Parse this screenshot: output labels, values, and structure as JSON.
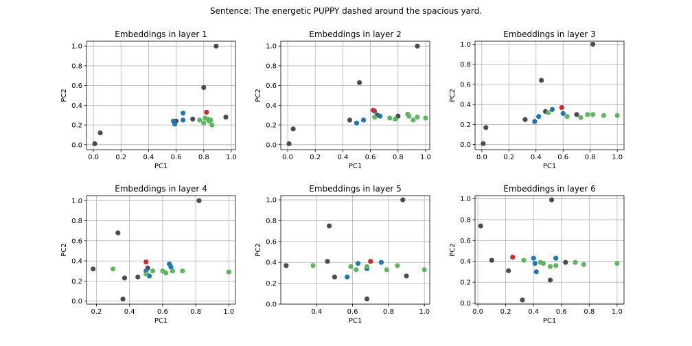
{
  "suptitle": "Sentence: The energetic PUPPY dashed around the spacious yard.",
  "colors": {
    "background": "#ffffff",
    "grid": "#b0b0b0",
    "axes": "#000000"
  },
  "chart_data": [
    {
      "type": "scatter",
      "title": "Embeddings in layer 1",
      "xlabel": "PC1",
      "ylabel": "PC2",
      "xlim": [
        -0.05,
        1.03
      ],
      "ylim": [
        -0.05,
        1.05
      ],
      "xticks": [
        0.0,
        0.2,
        0.4,
        0.6,
        0.8,
        1.0
      ],
      "xtick_labels": [
        "0.0",
        "0.2",
        "0.4",
        "0.6",
        "0.8",
        "1.0"
      ],
      "yticks": [
        0.0,
        0.2,
        0.4,
        0.6,
        0.8,
        1.0
      ],
      "ytick_labels": [
        "0.0",
        "0.2",
        "0.4",
        "0.6",
        "0.8",
        "1.0"
      ],
      "grid": true,
      "series": [
        {
          "color": "#4c4c4c",
          "points": [
            [
              0.01,
              0.01
            ],
            [
              0.05,
              0.12
            ],
            [
              0.6,
              0.24
            ],
            [
              0.72,
              0.26
            ],
            [
              0.8,
              0.58
            ],
            [
              0.89,
              1.0
            ],
            [
              0.96,
              0.28
            ]
          ]
        },
        {
          "color": "#1f77b4",
          "points": [
            [
              0.58,
              0.24
            ],
            [
              0.59,
              0.21
            ],
            [
              0.65,
              0.25
            ],
            [
              0.65,
              0.32
            ]
          ]
        },
        {
          "color": "#5cb85c",
          "points": [
            [
              0.77,
              0.25
            ],
            [
              0.8,
              0.22
            ],
            [
              0.81,
              0.27
            ],
            [
              0.83,
              0.26
            ],
            [
              0.84,
              0.24
            ],
            [
              0.85,
              0.25
            ],
            [
              0.86,
              0.2
            ]
          ]
        },
        {
          "color": "#d62728",
          "points": [
            [
              0.82,
              0.33
            ]
          ]
        }
      ]
    },
    {
      "type": "scatter",
      "title": "Embeddings in layer 2",
      "xlabel": "PC1",
      "ylabel": "PC2",
      "xlim": [
        -0.05,
        1.03
      ],
      "ylim": [
        -0.05,
        1.05
      ],
      "xticks": [
        0.0,
        0.2,
        0.4,
        0.6,
        0.8,
        1.0
      ],
      "xtick_labels": [
        "0.0",
        "0.2",
        "0.4",
        "0.6",
        "0.8",
        "1.0"
      ],
      "yticks": [
        0.0,
        0.2,
        0.4,
        0.6,
        0.8,
        1.0
      ],
      "ytick_labels": [
        "0.0",
        "0.2",
        "0.4",
        "0.6",
        "0.8",
        "1.0"
      ],
      "grid": true,
      "series": [
        {
          "color": "#4c4c4c",
          "points": [
            [
              0.01,
              0.01
            ],
            [
              0.04,
              0.16
            ],
            [
              0.45,
              0.25
            ],
            [
              0.52,
              0.63
            ],
            [
              0.65,
              0.3
            ],
            [
              0.8,
              0.29
            ],
            [
              0.94,
              1.0
            ]
          ]
        },
        {
          "color": "#1f77b4",
          "points": [
            [
              0.5,
              0.22
            ],
            [
              0.55,
              0.25
            ],
            [
              0.63,
              0.34
            ],
            [
              0.67,
              0.29
            ]
          ]
        },
        {
          "color": "#5cb85c",
          "points": [
            [
              0.63,
              0.28
            ],
            [
              0.74,
              0.27
            ],
            [
              0.78,
              0.26
            ],
            [
              0.87,
              0.31
            ],
            [
              0.88,
              0.29
            ],
            [
              0.91,
              0.25
            ],
            [
              0.94,
              0.28
            ],
            [
              1.0,
              0.27
            ]
          ]
        },
        {
          "color": "#d62728",
          "points": [
            [
              0.62,
              0.35
            ]
          ]
        }
      ]
    },
    {
      "type": "scatter",
      "title": "Embeddings in layer 3",
      "xlabel": "PC1",
      "ylabel": "PC2",
      "xlim": [
        -0.05,
        1.05
      ],
      "ylim": [
        -0.05,
        1.03
      ],
      "xticks": [
        0.0,
        0.2,
        0.4,
        0.6,
        0.8,
        1.0
      ],
      "xtick_labels": [
        "0.0",
        "0.2",
        "0.4",
        "0.6",
        "0.8",
        "1.0"
      ],
      "yticks": [
        0.0,
        0.2,
        0.4,
        0.6,
        0.8,
        1.0
      ],
      "ytick_labels": [
        "0.0",
        "0.2",
        "0.4",
        "0.6",
        "0.8",
        "1.0"
      ],
      "grid": true,
      "series": [
        {
          "color": "#4c4c4c",
          "points": [
            [
              0.01,
              0.01
            ],
            [
              0.03,
              0.17
            ],
            [
              0.32,
              0.25
            ],
            [
              0.44,
              0.64
            ],
            [
              0.47,
              0.33
            ],
            [
              0.7,
              0.3
            ],
            [
              0.82,
              1.0
            ]
          ]
        },
        {
          "color": "#1f77b4",
          "points": [
            [
              0.39,
              0.23
            ],
            [
              0.42,
              0.28
            ],
            [
              0.52,
              0.35
            ],
            [
              0.6,
              0.31
            ]
          ]
        },
        {
          "color": "#5cb85c",
          "points": [
            [
              0.49,
              0.32
            ],
            [
              0.63,
              0.28
            ],
            [
              0.73,
              0.27
            ],
            [
              0.78,
              0.3
            ],
            [
              0.82,
              0.3
            ],
            [
              0.9,
              0.29
            ],
            [
              1.0,
              0.29
            ]
          ]
        },
        {
          "color": "#d62728",
          "points": [
            [
              0.59,
              0.37
            ]
          ]
        }
      ]
    },
    {
      "type": "scatter",
      "title": "Embeddings in layer 4",
      "xlabel": "PC1",
      "ylabel": "PC2",
      "xlim": [
        0.14,
        1.04
      ],
      "ylim": [
        -0.03,
        1.05
      ],
      "xticks": [
        0.2,
        0.4,
        0.6,
        0.8,
        1.0
      ],
      "xtick_labels": [
        "0.2",
        "0.4",
        "0.6",
        "0.8",
        "1.0"
      ],
      "yticks": [
        0.0,
        0.2,
        0.4,
        0.6,
        0.8,
        1.0
      ],
      "ytick_labels": [
        "0.0",
        "0.2",
        "0.4",
        "0.6",
        "0.8",
        "1.0"
      ],
      "grid": true,
      "series": [
        {
          "color": "#4c4c4c",
          "points": [
            [
              0.18,
              0.32
            ],
            [
              0.33,
              0.68
            ],
            [
              0.36,
              0.02
            ],
            [
              0.37,
              0.23
            ],
            [
              0.45,
              0.24
            ],
            [
              0.51,
              0.33
            ],
            [
              0.82,
              1.0
            ]
          ]
        },
        {
          "color": "#1f77b4",
          "points": [
            [
              0.5,
              0.3
            ],
            [
              0.52,
              0.25
            ],
            [
              0.64,
              0.37
            ],
            [
              0.65,
              0.34
            ]
          ]
        },
        {
          "color": "#5cb85c",
          "points": [
            [
              0.3,
              0.32
            ],
            [
              0.5,
              0.27
            ],
            [
              0.54,
              0.3
            ],
            [
              0.6,
              0.3
            ],
            [
              0.62,
              0.28
            ],
            [
              0.66,
              0.3
            ],
            [
              0.72,
              0.3
            ],
            [
              1.0,
              0.29
            ]
          ]
        },
        {
          "color": "#d62728",
          "points": [
            [
              0.5,
              0.39
            ]
          ]
        }
      ]
    },
    {
      "type": "scatter",
      "title": "Embeddings in layer 5",
      "xlabel": "PC1",
      "ylabel": "PC2",
      "xlim": [
        0.2,
        1.03
      ],
      "ylim": [
        0.0,
        1.04
      ],
      "xticks": [
        0.4,
        0.6,
        0.8,
        1.0
      ],
      "xtick_labels": [
        "0.4",
        "0.6",
        "0.8",
        "1.0"
      ],
      "yticks": [
        0.0,
        0.2,
        0.4,
        0.6,
        0.8,
        1.0
      ],
      "ytick_labels": [
        "0.0",
        "0.2",
        "0.4",
        "0.6",
        "0.8",
        "1.0"
      ],
      "grid": true,
      "series": [
        {
          "color": "#4c4c4c",
          "points": [
            [
              0.23,
              0.37
            ],
            [
              0.46,
              0.41
            ],
            [
              0.47,
              0.75
            ],
            [
              0.5,
              0.26
            ],
            [
              0.68,
              0.05
            ],
            [
              0.88,
              1.0
            ],
            [
              0.9,
              0.27
            ]
          ]
        },
        {
          "color": "#1f77b4",
          "points": [
            [
              0.57,
              0.26
            ],
            [
              0.63,
              0.39
            ],
            [
              0.68,
              0.34
            ],
            [
              0.76,
              0.4
            ]
          ]
        },
        {
          "color": "#5cb85c",
          "points": [
            [
              0.38,
              0.37
            ],
            [
              0.59,
              0.36
            ],
            [
              0.62,
              0.33
            ],
            [
              0.68,
              0.36
            ],
            [
              0.79,
              0.33
            ],
            [
              0.85,
              0.37
            ],
            [
              1.0,
              0.33
            ]
          ]
        },
        {
          "color": "#d62728",
          "points": [
            [
              0.7,
              0.41
            ]
          ]
        }
      ]
    },
    {
      "type": "scatter",
      "title": "Embeddings in layer 6",
      "xlabel": "PC1",
      "ylabel": "PC2",
      "xlim": [
        -0.02,
        1.05
      ],
      "ylim": [
        -0.01,
        1.03
      ],
      "xticks": [
        0.0,
        0.2,
        0.4,
        0.6,
        0.8,
        1.0
      ],
      "xtick_labels": [
        "0.0",
        "0.2",
        "0.4",
        "0.6",
        "0.8",
        "1.0"
      ],
      "yticks": [
        0.0,
        0.2,
        0.4,
        0.6,
        0.8,
        1.0
      ],
      "ytick_labels": [
        "0.0",
        "0.2",
        "0.4",
        "0.6",
        "0.8",
        "1.0"
      ],
      "grid": true,
      "series": [
        {
          "color": "#4c4c4c",
          "points": [
            [
              0.02,
              0.74
            ],
            [
              0.1,
              0.41
            ],
            [
              0.22,
              0.31
            ],
            [
              0.32,
              0.03
            ],
            [
              0.52,
              0.22
            ],
            [
              0.53,
              0.99
            ],
            [
              0.63,
              0.39
            ]
          ]
        },
        {
          "color": "#1f77b4",
          "points": [
            [
              0.4,
              0.43
            ],
            [
              0.41,
              0.38
            ],
            [
              0.42,
              0.3
            ],
            [
              0.56,
              0.43
            ]
          ]
        },
        {
          "color": "#5cb85c",
          "points": [
            [
              0.33,
              0.41
            ],
            [
              0.45,
              0.39
            ],
            [
              0.47,
              0.38
            ],
            [
              0.52,
              0.35
            ],
            [
              0.56,
              0.36
            ],
            [
              0.7,
              0.39
            ],
            [
              0.76,
              0.37
            ],
            [
              1.0,
              0.38
            ]
          ]
        },
        {
          "color": "#d62728",
          "points": [
            [
              0.25,
              0.44
            ]
          ]
        }
      ]
    }
  ]
}
